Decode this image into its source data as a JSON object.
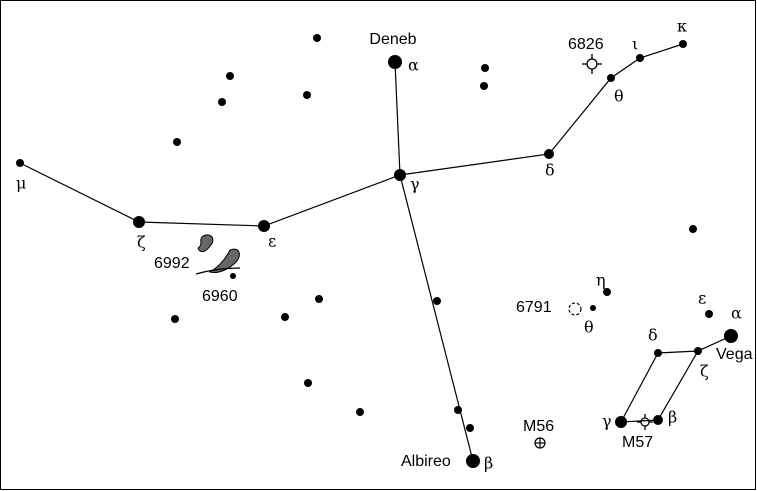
{
  "labels": [
    "Deneb",
    "α",
    "6826",
    "ι",
    "κ",
    "θ",
    "δ",
    "γ",
    "μ",
    "ζ",
    "ε",
    "6992",
    "6960",
    "η",
    "6791",
    "θ",
    "ε",
    "α",
    "Vega",
    "δ",
    "ζ",
    "γ",
    "β",
    "M57",
    "M56",
    "Albireo",
    "β"
  ]
}
